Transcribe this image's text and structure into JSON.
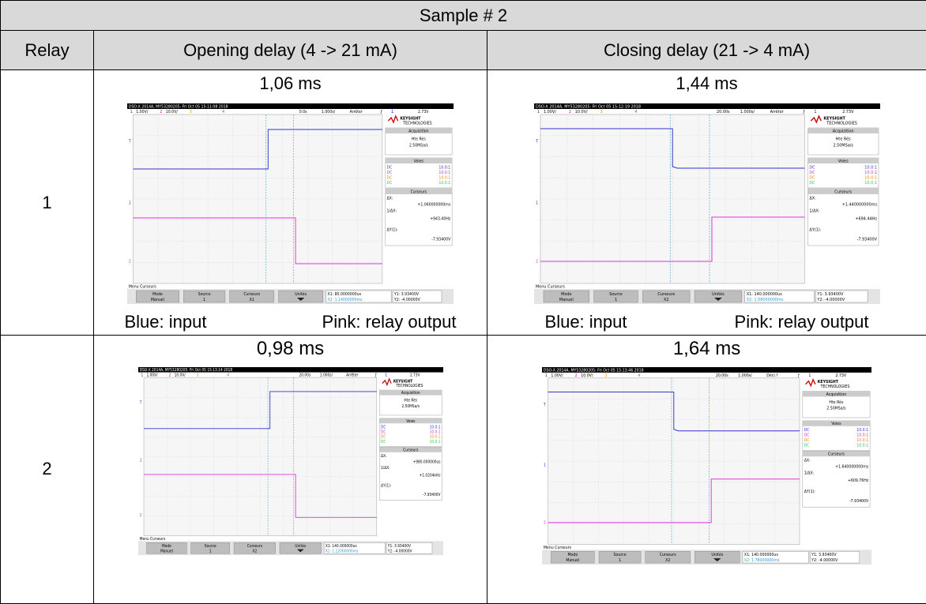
{
  "table": {
    "title": "Sample # 2",
    "headers": [
      "Relay",
      "Opening delay (4 -> 21 mA)",
      "Closing delay (21 -> 4 mA)"
    ],
    "legend": [
      "Blue: input",
      "Pink: relay output"
    ],
    "rows": [
      {
        "relay": "1",
        "cells": [
          {
            "delay": "1,06 ms",
            "scope": {
              "header": "DSO-X 2014A, MY53280205: Fri Oct 05 15:11:08 2018",
              "position": "0.0s",
              "timebase": "1.000s/",
              "state": "Arrêter",
              "cursor": "X1",
              "dx": "+1.060000000ms",
              "inv_dx": "+943.40Hz",
              "dy": "-7.93400V",
              "x1": "X1: 80.0000000us",
              "x2": "X2: 1.14000000ms",
              "y1": "Y1: 3.93400V",
              "y2": "Y2: -4.00000V"
            }
          },
          {
            "delay": "1,44 ms",
            "scope": {
              "header": "DSO-X 2014A, MY53280205: Fri Oct 05 15:12:19 2018",
              "position": "20.00s",
              "timebase": "1.000s/",
              "state": "Arrêter",
              "cursor": "X2",
              "dx": "+1.440000000ms",
              "inv_dx": "+694.44Hz",
              "dy": "-7.93400V",
              "x1": "X1: 140.000000us",
              "x2": "X2: 1.58000000ms",
              "y1": "Y1: 3.93400V",
              "y2": "Y2: -4.00000V"
            }
          }
        ]
      },
      {
        "relay": "2",
        "cells": [
          {
            "delay": "0,98 ms",
            "scope": {
              "header": "DSO-X 2014A, MY53280205: Fri Oct 05 15:13:14 2018",
              "position": "20.00s",
              "timebase": "1.000s/",
              "state": "Arrêter",
              "cursor": "X2",
              "dx": "+980.000000us",
              "inv_dx": "+1.0204kHz",
              "dy": "-7.93400V",
              "x1": "X1: 140.000000us",
              "x2": "X2: 1.12000000ms",
              "y1": "Y1: 3.93400V",
              "y2": "Y2: -4.00000V"
            }
          },
          {
            "delay": "1,64 ms",
            "scope": {
              "header": "DSO-X 2014A, MY53280205: Fri Oct 05 15:13:46 2018",
              "position": "20.00s",
              "timebase": "1.000s/",
              "state": "Décl.?",
              "cursor": "X2",
              "dx": "+1.640000000ms",
              "inv_dx": "+609.76Hz",
              "dy": "-7.93400V",
              "x1": "X1: 140.000000us",
              "x2": "X2: 1.78000000ms",
              "y1": "Y1: 3.93400V",
              "y2": "Y2: -4.00000V"
            }
          }
        ]
      }
    ]
  },
  "scope_common": {
    "ch1": "1",
    "ch1_scale": "1.00V/",
    "ch2": "2",
    "ch2_scale": "10.0V/",
    "ch3": "3",
    "ch4": "4",
    "trig_symbol": "ƒ",
    "trig_ch": "1",
    "trig_level": "2.73V",
    "brand": "KEYSIGHT",
    "brand_sub": "TECHNOLOGIES",
    "acquisition": "Acquisition",
    "acq_mode": "Hte Rés",
    "rate": "2.50MSa/s",
    "channels": "Voies",
    "coupling": "DC",
    "probe": "10.0:1",
    "cursors": "Curseurs",
    "dx_label": "ΔX:",
    "inv_label": "1/ΔX:",
    "dy_label": "ΔY(1):",
    "menu": "Menu Curseurs",
    "mode": "Mode",
    "mode_val": "Manuel",
    "source": "Source",
    "source_val": "1",
    "units": "Unités",
    "marker_t": "T",
    "marker_1": "1",
    "marker_2": "2"
  }
}
